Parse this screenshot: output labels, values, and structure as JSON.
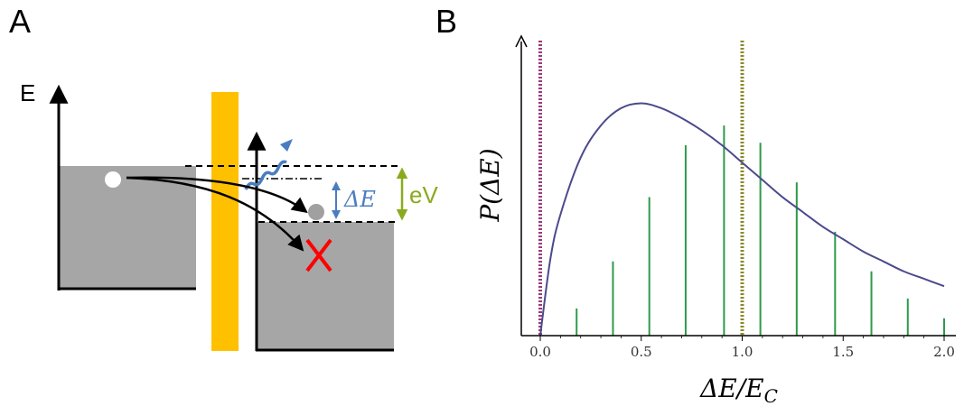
{
  "panel_a": {
    "letter": "A",
    "energy_label": "E",
    "delta_e_label": "ΔE",
    "ev_label": "eV",
    "colors": {
      "band_fill": "#a6a6a6",
      "barrier": "#ffc000",
      "photon": "#4a7dc0",
      "delta_e_arrow": "#4a7dc0",
      "ev_arrow": "#8aaa1e",
      "cross": "#ff0000",
      "particle_white": "#ffffff",
      "particle_grey": "#a0a0a0"
    },
    "icons": [
      "photon-wave-icon",
      "cross-icon"
    ]
  },
  "panel_b": {
    "letter": "B",
    "y_label": "P(ΔE)",
    "x_label": "ΔE/E_C"
  },
  "chart_data": {
    "type": "line",
    "xlabel": "ΔE/E_C",
    "ylabel": "P(ΔE)",
    "xlim": [
      -0.1,
      2.05
    ],
    "ylim": [
      0,
      1.0
    ],
    "x_ticks": [
      "0.0",
      "0.5",
      "1.0",
      "1.5",
      "2.0"
    ],
    "curve": {
      "x": [
        0.0,
        0.05,
        0.1,
        0.2,
        0.3,
        0.4,
        0.5,
        0.6,
        0.7,
        0.8,
        0.9,
        1.0,
        1.1,
        1.2,
        1.3,
        1.4,
        1.5,
        1.6,
        1.7,
        1.8,
        1.9,
        2.0
      ],
      "y": [
        0.0,
        0.31,
        0.49,
        0.72,
        0.85,
        0.92,
        0.94,
        0.92,
        0.88,
        0.83,
        0.77,
        0.7,
        0.63,
        0.56,
        0.5,
        0.44,
        0.39,
        0.34,
        0.3,
        0.26,
        0.23,
        0.2
      ],
      "color": "#4b4a8c"
    },
    "stems": {
      "x": [
        0.18,
        0.36,
        0.54,
        0.72,
        0.91,
        1.09,
        1.27,
        1.46,
        1.64,
        1.82,
        2.0
      ],
      "y": [
        0.11,
        0.3,
        0.56,
        0.77,
        0.85,
        0.78,
        0.62,
        0.42,
        0.26,
        0.15,
        0.07
      ],
      "color": "#2e9a4a"
    },
    "vlines": [
      {
        "x": 0.0,
        "color": "#9c3a7c",
        "style": "dotted"
      },
      {
        "x": 1.0,
        "color": "#8a8a2a",
        "style": "dotted"
      }
    ]
  }
}
